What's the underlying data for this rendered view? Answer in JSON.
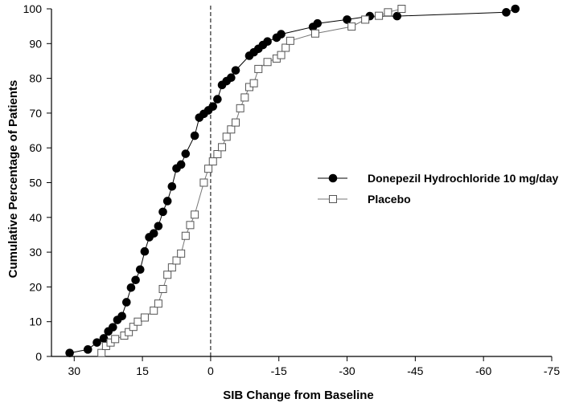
{
  "chart_data": {
    "type": "line",
    "xlabel": "SIB Change from Baseline",
    "ylabel": "Cumulative Percentage of Patients",
    "xlim": [
      35,
      -75
    ],
    "ylim": [
      0,
      100
    ],
    "x_ticks": [
      30,
      15,
      0,
      -15,
      -30,
      -45,
      -60,
      -75
    ],
    "x_tick_labels": [
      "30",
      "15",
      "0",
      "-15",
      "-30",
      "-45",
      "-60",
      "-75"
    ],
    "y_ticks": [
      0,
      10,
      20,
      30,
      40,
      50,
      60,
      70,
      80,
      90,
      100
    ],
    "y_tick_labels": [
      "0",
      "10",
      "20",
      "30",
      "40",
      "50",
      "60",
      "70",
      "80",
      "90",
      "100"
    ],
    "reference_line": {
      "x": 0,
      "style": "dashed"
    },
    "legend_position": "right-middle",
    "series": [
      {
        "name": "Donepezil Hydrochloride 10 mg/day",
        "marker": "filled-circle",
        "points": [
          [
            31,
            1
          ],
          [
            27,
            2
          ],
          [
            25,
            4
          ],
          [
            23.5,
            5.2
          ],
          [
            22.5,
            7.2
          ],
          [
            21.5,
            8.4
          ],
          [
            20.5,
            10.5
          ],
          [
            19.5,
            11.6
          ],
          [
            18.5,
            15.6
          ],
          [
            17.5,
            19.8
          ],
          [
            16.5,
            22
          ],
          [
            15.5,
            25
          ],
          [
            14.5,
            30.2
          ],
          [
            13.5,
            34.3
          ],
          [
            12.5,
            35.4
          ],
          [
            11.5,
            37.5
          ],
          [
            10.5,
            41.6
          ],
          [
            9.5,
            44.7
          ],
          [
            8.5,
            48.9
          ],
          [
            7.5,
            54.1
          ],
          [
            6.5,
            55.2
          ],
          [
            5.5,
            58.3
          ],
          [
            3.5,
            63.5
          ],
          [
            2.5,
            68.7
          ],
          [
            1.5,
            69.8
          ],
          [
            0.5,
            70.8
          ],
          [
            -0.5,
            71.9
          ],
          [
            -1.5,
            74
          ],
          [
            -2.5,
            78.1
          ],
          [
            -3.5,
            79.2
          ],
          [
            -4.5,
            80.2
          ],
          [
            -5.5,
            82.3
          ],
          [
            -8.5,
            86.5
          ],
          [
            -9.5,
            87.5
          ],
          [
            -10.5,
            88.5
          ],
          [
            -11.5,
            89.6
          ],
          [
            -12.5,
            90.6
          ],
          [
            -14.5,
            91.7
          ],
          [
            -15.5,
            92.7
          ],
          [
            -22.5,
            94.8
          ],
          [
            -23.5,
            95.8
          ],
          [
            -30,
            96.9
          ],
          [
            -35,
            97.9
          ],
          [
            -41,
            97.9
          ],
          [
            -65,
            99
          ],
          [
            -67,
            100
          ]
        ]
      },
      {
        "name": "Placebo",
        "marker": "open-square",
        "points": [
          [
            24,
            1
          ],
          [
            23,
            3
          ],
          [
            22,
            4
          ],
          [
            21,
            5
          ],
          [
            19,
            6
          ],
          [
            18,
            7
          ],
          [
            17,
            8.5
          ],
          [
            16,
            10
          ],
          [
            14.5,
            11.2
          ],
          [
            12.5,
            13.2
          ],
          [
            11.5,
            15.2
          ],
          [
            10.5,
            19.4
          ],
          [
            9.5,
            23.5
          ],
          [
            8.5,
            25.6
          ],
          [
            7.5,
            27.6
          ],
          [
            6.5,
            29.6
          ],
          [
            5.5,
            34.7
          ],
          [
            4.5,
            37.8
          ],
          [
            3.5,
            40.8
          ],
          [
            1.5,
            50
          ],
          [
            0.5,
            54
          ],
          [
            -0.5,
            56.1
          ],
          [
            -1.5,
            58.2
          ],
          [
            -2.5,
            60.2
          ],
          [
            -3.5,
            63.2
          ],
          [
            -4.5,
            65.3
          ],
          [
            -5.5,
            67.3
          ],
          [
            -6.5,
            71.4
          ],
          [
            -7.5,
            74.5
          ],
          [
            -8.5,
            77.5
          ],
          [
            -9.5,
            78.6
          ],
          [
            -10.5,
            82.7
          ],
          [
            -12.5,
            84.7
          ],
          [
            -14.5,
            85.7
          ],
          [
            -15.5,
            86.7
          ],
          [
            -16.5,
            88.8
          ],
          [
            -17.5,
            90.8
          ],
          [
            -23,
            92.9
          ],
          [
            -31,
            94.9
          ],
          [
            -34,
            96.9
          ],
          [
            -37,
            98
          ],
          [
            -39,
            99
          ],
          [
            -42,
            100
          ]
        ]
      }
    ]
  }
}
